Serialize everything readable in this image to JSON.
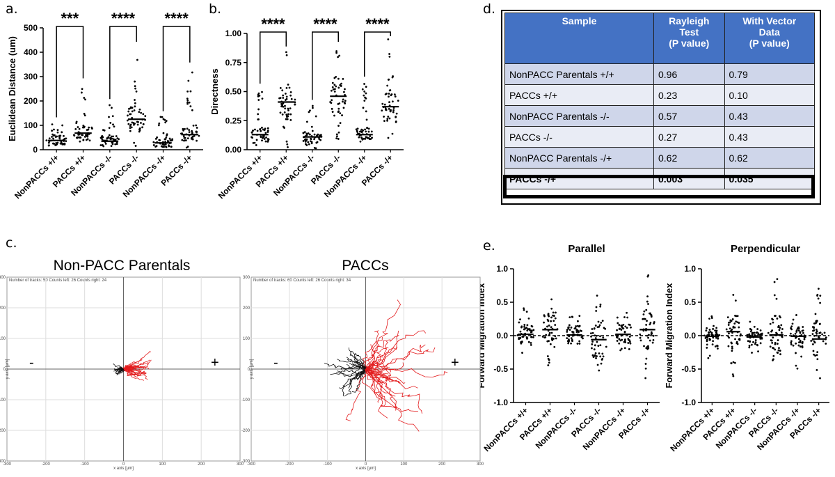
{
  "panel_letters": {
    "a": "a.",
    "b": "b.",
    "c": "c.",
    "d": "d.",
    "e": "e."
  },
  "categories": [
    "NonPACCs +/+",
    "PACCs +/+",
    "NonPACCs -/-",
    "PACCs -/-",
    "NonPACCs -/+",
    "PACCs -/+"
  ],
  "chart_data": [
    {
      "id": "a",
      "type": "scatter",
      "title": "",
      "ylabel": "Euclidean Distance (um)",
      "ylim": [
        0,
        500
      ],
      "yticks": [
        0,
        100,
        200,
        300,
        400,
        500
      ],
      "categories": [
        "NonPACCs +/+",
        "PACCs +/+",
        "NonPACCs -/-",
        "PACCs -/-",
        "NonPACCs -/+",
        "PACCs -/+"
      ],
      "medians": [
        38,
        68,
        35,
        125,
        28,
        62
      ],
      "ranges": [
        [
          5,
          110
        ],
        [
          8,
          270
        ],
        [
          3,
          185
        ],
        [
          10,
          420
        ],
        [
          5,
          135
        ],
        [
          8,
          335
        ]
      ],
      "n": 50,
      "significance": [
        {
          "pair": [
            0,
            1
          ],
          "label": "***"
        },
        {
          "pair": [
            2,
            3
          ],
          "label": "****"
        },
        {
          "pair": [
            4,
            5
          ],
          "label": "****"
        }
      ]
    },
    {
      "id": "b",
      "type": "scatter",
      "title": "",
      "ylabel": "Directness",
      "ylim": [
        0,
        1
      ],
      "yticks": [
        "0.00",
        "0.25",
        "0.50",
        "0.75",
        "1.00"
      ],
      "categories": [
        "NonPACCs +/+",
        "PACCs +/+",
        "NonPACCs -/-",
        "PACCs -/-",
        "NonPACCs -/+",
        "PACCs -/+"
      ],
      "medians": [
        0.13,
        0.41,
        0.11,
        0.46,
        0.13,
        0.37
      ],
      "ranges": [
        [
          0.01,
          0.52
        ],
        [
          0.02,
          0.84
        ],
        [
          0.01,
          0.38
        ],
        [
          0.02,
          0.88
        ],
        [
          0.01,
          0.58
        ],
        [
          0.02,
          0.96
        ]
      ],
      "n": 50,
      "significance": [
        {
          "pair": [
            0,
            1
          ],
          "label": "****"
        },
        {
          "pair": [
            2,
            3
          ],
          "label": "****"
        },
        {
          "pair": [
            4,
            5
          ],
          "label": "****"
        }
      ]
    },
    {
      "id": "e1",
      "type": "scatter",
      "title": "Parallel",
      "ylabel": "Forward Migration Index",
      "ylim": [
        -1,
        1
      ],
      "yticks": [
        "-1.0",
        "-0.5",
        "0.0",
        "0.5",
        "1.0"
      ],
      "categories": [
        "NonPACCs +/+",
        "PACCs +/+",
        "NonPACCs -/-",
        "PACCs -/-",
        "NonPACCs -/+",
        "PACCs -/+"
      ],
      "medians": [
        0.02,
        0.09,
        0.01,
        -0.06,
        0.02,
        0.09
      ],
      "ranges": [
        [
          -0.3,
          0.45
        ],
        [
          -0.5,
          0.66
        ],
        [
          -0.25,
          0.3
        ],
        [
          -0.85,
          0.65
        ],
        [
          -0.3,
          0.35
        ],
        [
          -0.65,
          0.96
        ]
      ],
      "n": 50,
      "zero_line": true
    },
    {
      "id": "e2",
      "type": "scatter",
      "title": "Perpendicular",
      "ylabel": "Forward Migration Index",
      "ylim": [
        -1,
        1
      ],
      "yticks": [
        "-1.0",
        "-0.5",
        "0.0",
        "0.5",
        "1.0"
      ],
      "categories": [
        "NonPACCs +/+",
        "PACCs +/+",
        "NonPACCs -/-",
        "PACCs -/-",
        "NonPACCs -/+",
        "PACCs -/+"
      ],
      "medians": [
        -0.01,
        0.06,
        -0.02,
        0.01,
        -0.01,
        -0.05
      ],
      "ranges": [
        [
          -0.35,
          0.35
        ],
        [
          -0.65,
          0.82
        ],
        [
          -0.3,
          0.22
        ],
        [
          -0.7,
          0.85
        ],
        [
          -0.55,
          0.35
        ],
        [
          -0.75,
          0.72
        ]
      ],
      "n": 50,
      "zero_line": true
    }
  ],
  "track_plots": [
    {
      "title": "Non-PACC Parentals",
      "info": "Number of tracks: 50   Counts left: 26   Counts right: 24",
      "spread": 55,
      "seed": 3
    },
    {
      "title": "PACCs",
      "info": "Number of tracks: 60   Counts left: 26   Counts right: 34",
      "spread": 190,
      "seed": 11
    }
  ],
  "track_axes": {
    "x_label": "x axis [μm]",
    "y_label": "y axis [μm]",
    "ticks": [
      "-300",
      "-200",
      "-100",
      "0",
      "100",
      "200",
      "300"
    ],
    "minus": "-",
    "plus": "+",
    "colors": {
      "left": "#111111",
      "right": "#e31a1c"
    }
  },
  "table": {
    "headers": [
      "Sample",
      "Rayleigh\nTest\n(P value)",
      "With Vector\nData\n(P value)"
    ],
    "rows": [
      [
        "NonPACC Parentals +/+",
        "0.96",
        "0.79"
      ],
      [
        "PACCs +/+",
        "0.23",
        "0.10"
      ],
      [
        "NonPACC Parentals -/-",
        "0.57",
        "0.43"
      ],
      [
        "PACCs -/-",
        "0.27",
        "0.43"
      ],
      [
        "NonPACC Parentals -/+",
        "0.62",
        "0.62"
      ],
      [
        "PACCs -/+",
        "0.003",
        "0.035"
      ]
    ],
    "colors": {
      "header": "#4472c4",
      "row_a": "#cfd6ea",
      "row_b": "#e9ecf5"
    }
  }
}
